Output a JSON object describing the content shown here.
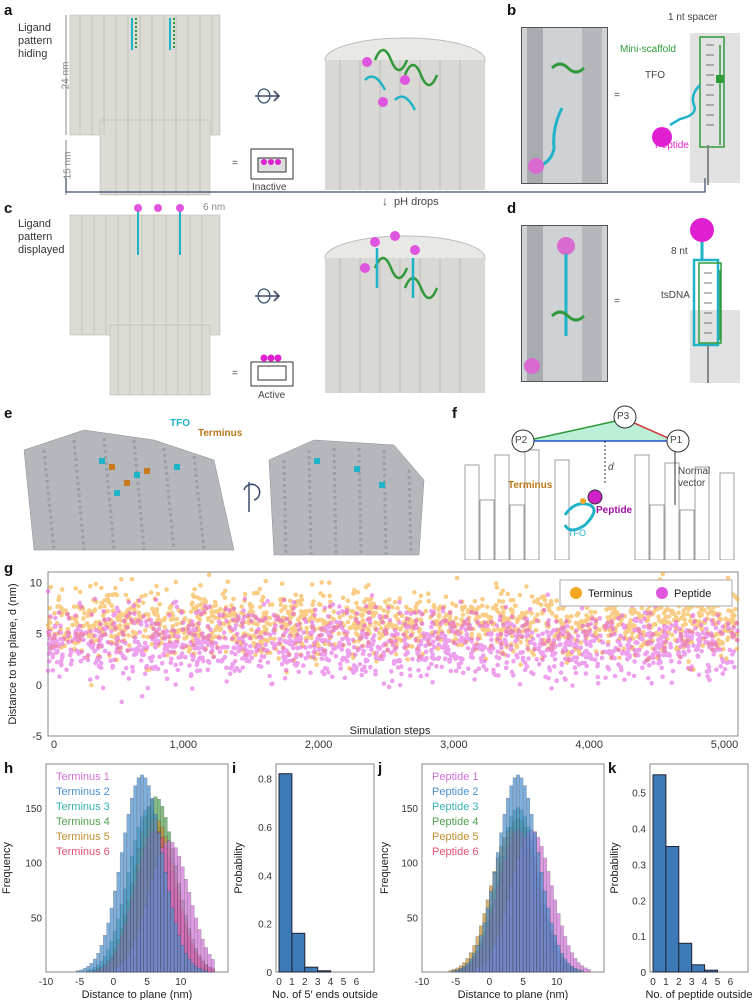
{
  "panels": {
    "a": {
      "label": "a",
      "caption": "Ligand\npattern\nhiding",
      "dim_top": "24 nm",
      "dim_bottom": "15 nm",
      "state": "Inactive",
      "eq": "="
    },
    "b": {
      "label": "b",
      "spacer": "1 nt spacer",
      "mini_scaffold": "Mini-scaffold",
      "tfo": "TFO",
      "peptide": "Peptide",
      "eq": "="
    },
    "ph": {
      "text": "pH drops",
      "arrow": "↓"
    },
    "c": {
      "label": "c",
      "caption": "Ligand\npattern\ndisplayed",
      "dim": "6 nm",
      "state": "Active",
      "eq": "="
    },
    "d": {
      "label": "d",
      "nt": "8 nt",
      "tsdna": "tsDNA",
      "eq": "="
    },
    "e": {
      "label": "e",
      "tfo": "TFO",
      "terminus": "Terminus"
    },
    "f": {
      "label": "f",
      "p1": "P1",
      "p2": "P2",
      "p3": "P3",
      "d": "d",
      "normal": "Normal\nvector",
      "terminus": "Terminus",
      "peptide": "Peptide",
      "tfo": "TFO"
    },
    "g": {
      "label": "g"
    },
    "h": {
      "label": "h"
    },
    "i": {
      "label": "i"
    },
    "j": {
      "label": "j"
    },
    "k": {
      "label": "k"
    }
  },
  "colors": {
    "terminus": "#f5a623",
    "peptide": "#e055e0",
    "hist_blue": "#3d7ab8",
    "tfo": "#1fb3c8",
    "green": "#2e9a3a",
    "magenta": "#e020d0"
  },
  "chart_data": [
    {
      "id": "g",
      "type": "scatter",
      "xlabel": "Simulation steps",
      "ylabel": "Distance to the plane, d (nm)",
      "xticks": [
        "0",
        "1,000",
        "2,000",
        "3,000",
        "4,000",
        "5,000"
      ],
      "yticks": [
        "10",
        "5",
        "0",
        "-5"
      ],
      "xlim": [
        0,
        5100
      ],
      "ylim": [
        -5,
        11
      ],
      "legend": [
        "Terminus",
        "Peptide"
      ],
      "legend_position": "top-right",
      "series": [
        {
          "name": "Terminus",
          "mean": 6,
          "spread": 2.3
        },
        {
          "name": "Peptide",
          "mean": 4,
          "spread": 2.3
        }
      ]
    },
    {
      "id": "h",
      "type": "bar",
      "xlabel": "Distance to plane (nm)",
      "ylabel": "Frequency",
      "xticks": [
        "-10",
        "-5",
        "0",
        "5",
        "10"
      ],
      "yticks": [
        "150",
        "100",
        "50"
      ],
      "xlim": [
        -10,
        17
      ],
      "ylim": [
        0,
        190
      ],
      "legend": [
        "Terminus 1",
        "Terminus 2",
        "Terminus 3",
        "Terminus 4",
        "Terminus 5",
        "Terminus 6"
      ],
      "legend_colors": [
        "#d070d8",
        "#4a90d0",
        "#38b0b0",
        "#50a050",
        "#c09030",
        "#e05070"
      ],
      "series": [
        {
          "name": "Terminus 1",
          "center": 8,
          "peak": 120
        },
        {
          "name": "Terminus 2",
          "center": 4,
          "peak": 180
        },
        {
          "name": "Terminus 3",
          "center": 5,
          "peak": 150
        },
        {
          "name": "Terminus 4",
          "center": 6,
          "peak": 160
        },
        {
          "name": "Terminus 5",
          "center": 6,
          "peak": 140
        },
        {
          "name": "Terminus 6",
          "center": 6,
          "peak": 130
        }
      ]
    },
    {
      "id": "i",
      "type": "bar",
      "xlabel": "No. of 5′ ends outside",
      "ylabel": "Probability",
      "categories": [
        "0",
        "1",
        "2",
        "3",
        "4",
        "5",
        "6"
      ],
      "values": [
        0.82,
        0.16,
        0.02,
        0.005,
        0,
        0,
        0
      ],
      "yticks": [
        "0.8",
        "0.6",
        "0.4",
        "0.2",
        "0"
      ],
      "ylim": [
        0,
        0.86
      ]
    },
    {
      "id": "j",
      "type": "bar",
      "xlabel": "Distance to plane (nm)",
      "ylabel": "Frequency",
      "xticks": [
        "-10",
        "-5",
        "0",
        "5",
        "10"
      ],
      "yticks": [
        "150",
        "100",
        "50"
      ],
      "xlim": [
        -10,
        17
      ],
      "ylim": [
        0,
        190
      ],
      "legend": [
        "Peptide 1",
        "Peptide 2",
        "Peptide 3",
        "Peptide 4",
        "Peptide 5",
        "Peptide 6"
      ],
      "legend_colors": [
        "#d070d8",
        "#4a90d0",
        "#38b0b0",
        "#50a050",
        "#c09030",
        "#e05070"
      ],
      "series": [
        {
          "name": "Peptide 1",
          "center": 6,
          "peak": 130
        },
        {
          "name": "Peptide 2",
          "center": 4,
          "peak": 180
        },
        {
          "name": "Peptide 3",
          "center": 4,
          "peak": 150
        },
        {
          "name": "Peptide 4",
          "center": 4,
          "peak": 140
        },
        {
          "name": "Peptide 5",
          "center": 3,
          "peak": 130
        },
        {
          "name": "Peptide 6",
          "center": 4,
          "peak": 130
        }
      ]
    },
    {
      "id": "k",
      "type": "bar",
      "xlabel": "No. of peptide outside",
      "ylabel": "Probability",
      "categories": [
        "0",
        "1",
        "2",
        "3",
        "4",
        "5",
        "6"
      ],
      "values": [
        0.55,
        0.35,
        0.08,
        0.02,
        0.005,
        0,
        0
      ],
      "yticks": [
        "0.5",
        "0.4",
        "0.3",
        "0.2",
        "0.1",
        "0"
      ],
      "ylim": [
        0,
        0.58
      ]
    }
  ]
}
